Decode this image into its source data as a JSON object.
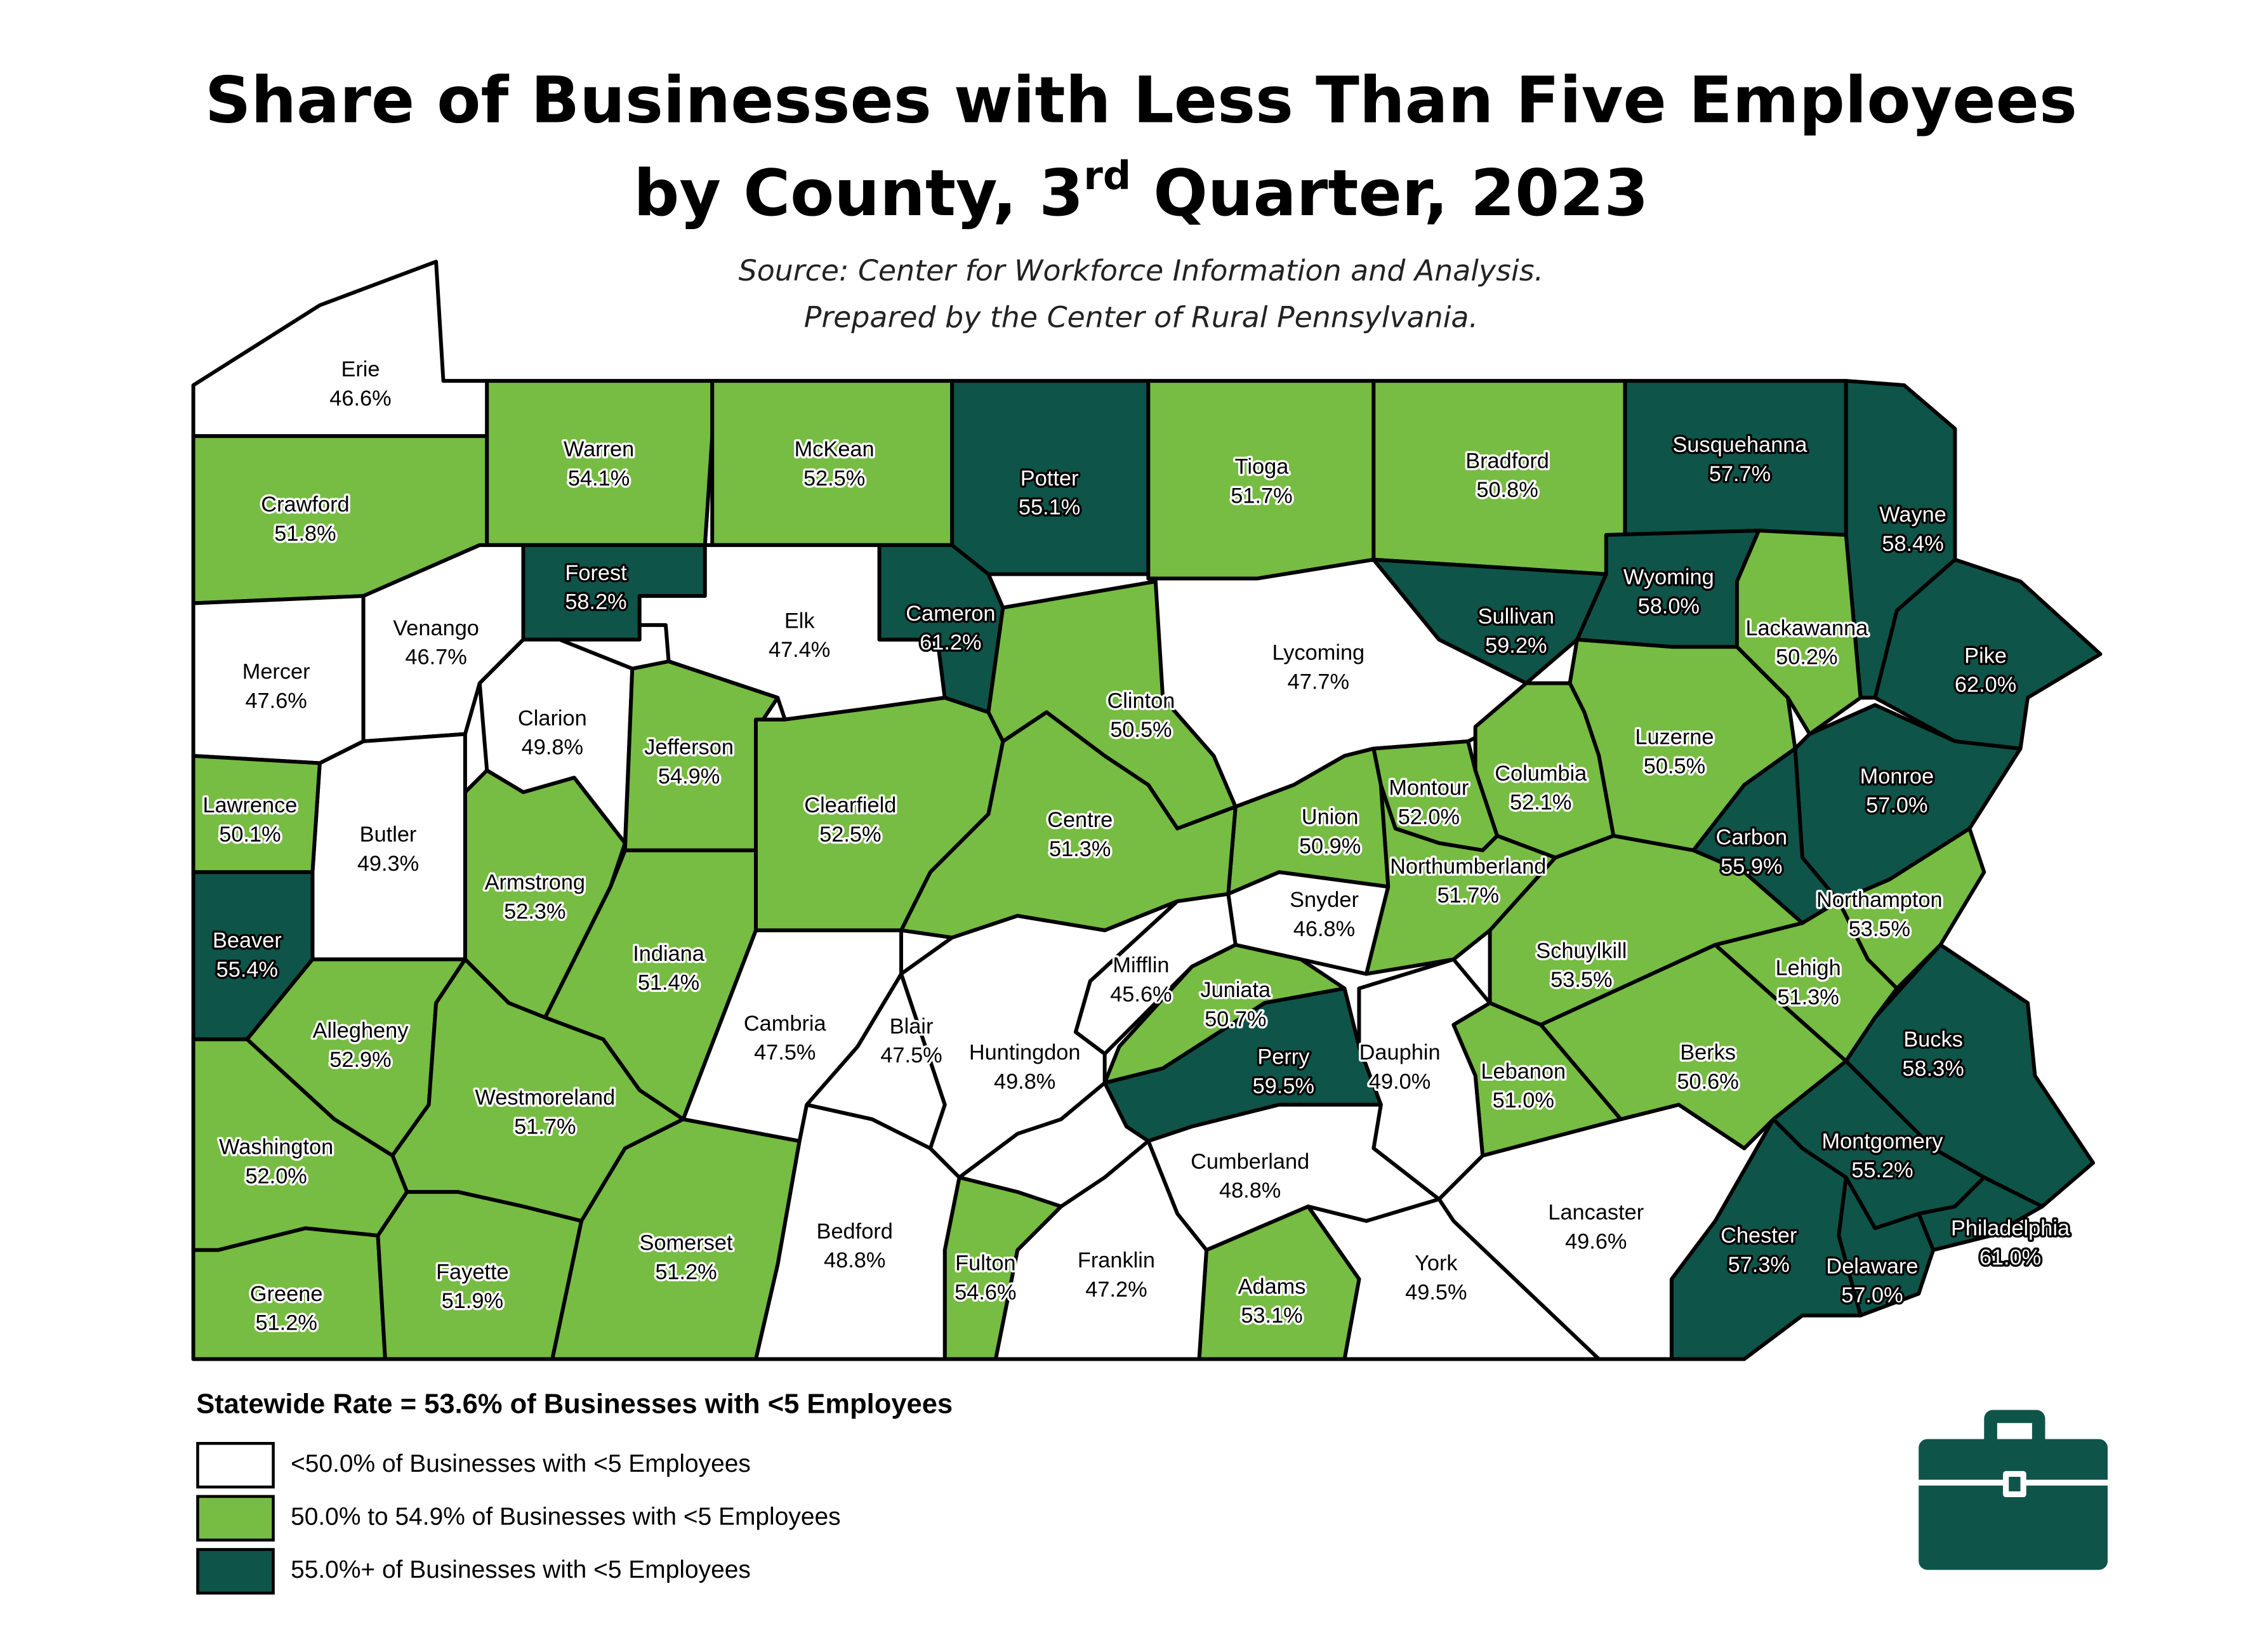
{
  "title": {
    "line1": "Share of Businesses with Less Than Five Employees",
    "line2": "by County, 3",
    "line2_superscript": "rd",
    "line2_end": " Quarter, 2023"
  },
  "source": [
    "Source: Center for Workforce Information and Analysis.",
    "Prepared by the Center of Rural Pennsylvania."
  ],
  "map": {
    "counties": [
      {
        "name": "Erie",
        "value": 46.6,
        "value_label": "46.6%"
      },
      {
        "name": "Crawford",
        "value": 51.8,
        "value_label": "51.8%"
      },
      {
        "name": "Warren",
        "value": 54.1,
        "value_label": "54.1%"
      },
      {
        "name": "McKean",
        "value": 52.5,
        "value_label": "52.5%"
      },
      {
        "name": "Potter",
        "value": 55.1,
        "value_label": "55.1%"
      },
      {
        "name": "Tioga",
        "value": 51.7,
        "value_label": "51.7%"
      },
      {
        "name": "Bradford",
        "value": 50.8,
        "value_label": "50.8%"
      },
      {
        "name": "Susquehanna",
        "value": 57.7,
        "value_label": "57.7%"
      },
      {
        "name": "Wayne",
        "value": 58.4,
        "value_label": "58.4%"
      },
      {
        "name": "Mercer",
        "value": 47.6,
        "value_label": "47.6%"
      },
      {
        "name": "Venango",
        "value": 46.7,
        "value_label": "46.7%"
      },
      {
        "name": "Forest",
        "value": 58.2,
        "value_label": "58.2%"
      },
      {
        "name": "Elk",
        "value": 47.4,
        "value_label": "47.4%"
      },
      {
        "name": "Cameron",
        "value": 61.2,
        "value_label": "61.2%"
      },
      {
        "name": "Clarion",
        "value": 49.8,
        "value_label": "49.8%"
      },
      {
        "name": "Jefferson",
        "value": 54.9,
        "value_label": "54.9%"
      },
      {
        "name": "Lycoming",
        "value": 47.7,
        "value_label": "47.7%"
      },
      {
        "name": "Clinton",
        "value": 50.5,
        "value_label": "50.5%"
      },
      {
        "name": "Sullivan",
        "value": 59.2,
        "value_label": "59.2%"
      },
      {
        "name": "Wyoming",
        "value": 58.0,
        "value_label": "58.0%"
      },
      {
        "name": "Lackawanna",
        "value": 50.2,
        "value_label": "50.2%"
      },
      {
        "name": "Pike",
        "value": 62.0,
        "value_label": "62.0%"
      },
      {
        "name": "Luzerne",
        "value": 50.5,
        "value_label": "50.5%"
      },
      {
        "name": "Columbia",
        "value": 52.1,
        "value_label": "52.1%"
      },
      {
        "name": "Montour",
        "value": 52.0,
        "value_label": "52.0%"
      },
      {
        "name": "Monroe",
        "value": 57.0,
        "value_label": "57.0%"
      },
      {
        "name": "Carbon",
        "value": 55.9,
        "value_label": "55.9%"
      },
      {
        "name": "Northampton",
        "value": 53.5,
        "value_label": "53.5%"
      },
      {
        "name": "Lehigh",
        "value": 51.3,
        "value_label": "51.3%"
      },
      {
        "name": "Bucks",
        "value": 58.3,
        "value_label": "58.3%"
      },
      {
        "name": "Montgomery",
        "value": 55.2,
        "value_label": "55.2%"
      },
      {
        "name": "Philadelphia",
        "value": 61.0,
        "value_label": "61.0%"
      },
      {
        "name": "Delaware",
        "value": 57.0,
        "value_label": "57.0%"
      },
      {
        "name": "Chester",
        "value": 57.3,
        "value_label": "57.3%"
      },
      {
        "name": "Lancaster",
        "value": 49.6,
        "value_label": "49.6%"
      },
      {
        "name": "Berks",
        "value": 50.6,
        "value_label": "50.6%"
      },
      {
        "name": "Schuylkill",
        "value": 53.5,
        "value_label": "53.5%"
      },
      {
        "name": "Lebanon",
        "value": 51.0,
        "value_label": "51.0%"
      },
      {
        "name": "Dauphin",
        "value": 49.0,
        "value_label": "49.0%"
      },
      {
        "name": "Northumberland",
        "value": 51.7,
        "value_label": "51.7%"
      },
      {
        "name": "Union",
        "value": 50.9,
        "value_label": "50.9%"
      },
      {
        "name": "Snyder",
        "value": 46.8,
        "value_label": "46.8%"
      },
      {
        "name": "Mifflin",
        "value": 45.6,
        "value_label": "45.6%"
      },
      {
        "name": "Juniata",
        "value": 50.7,
        "value_label": "50.7%"
      },
      {
        "name": "Perry",
        "value": 59.5,
        "value_label": "59.5%"
      },
      {
        "name": "Cumberland",
        "value": 48.8,
        "value_label": "48.8%"
      },
      {
        "name": "York",
        "value": 49.5,
        "value_label": "49.5%"
      },
      {
        "name": "Adams",
        "value": 53.1,
        "value_label": "53.1%"
      },
      {
        "name": "Franklin",
        "value": 47.2,
        "value_label": "47.2%"
      },
      {
        "name": "Fulton",
        "value": 54.6,
        "value_label": "54.6%"
      },
      {
        "name": "Bedford",
        "value": 48.8,
        "value_label": "48.8%"
      },
      {
        "name": "Huntingdon",
        "value": 49.8,
        "value_label": "49.8%"
      },
      {
        "name": "Blair",
        "value": 47.5,
        "value_label": "47.5%"
      },
      {
        "name": "Cambria",
        "value": 47.5,
        "value_label": "47.5%"
      },
      {
        "name": "Centre",
        "value": 51.3,
        "value_label": "51.3%"
      },
      {
        "name": "Clearfield",
        "value": 52.5,
        "value_label": "52.5%"
      },
      {
        "name": "Indiana",
        "value": 51.4,
        "value_label": "51.4%"
      },
      {
        "name": "Armstrong",
        "value": 52.3,
        "value_label": "52.3%"
      },
      {
        "name": "Butler",
        "value": 49.3,
        "value_label": "49.3%"
      },
      {
        "name": "Lawrence",
        "value": 50.1,
        "value_label": "50.1%"
      },
      {
        "name": "Beaver",
        "value": 55.4,
        "value_label": "55.4%"
      },
      {
        "name": "Allegheny",
        "value": 52.9,
        "value_label": "52.9%"
      },
      {
        "name": "Westmoreland",
        "value": 51.7,
        "value_label": "51.7%"
      },
      {
        "name": "Washington",
        "value": 52.0,
        "value_label": "52.0%"
      },
      {
        "name": "Greene",
        "value": 51.2,
        "value_label": "51.2%"
      },
      {
        "name": "Fayette",
        "value": 51.9,
        "value_label": "51.9%"
      },
      {
        "name": "Somerset",
        "value": 51.2,
        "value_label": "51.2%"
      }
    ]
  },
  "legend": {
    "statewide": "Statewide Rate = 53.6% of Businesses with <5 Employees",
    "items": [
      {
        "label": "<50.0% of Businesses with <5 Employees",
        "color": "#ffffff"
      },
      {
        "label": "50.0% to 54.9% of Businesses with <5 Employees",
        "color": "#77bc43",
        "from": 50
      },
      {
        "label": "55.0%+ of Businesses with <5 Employees",
        "color": "#0e5449",
        "from": 55
      }
    ]
  }
}
